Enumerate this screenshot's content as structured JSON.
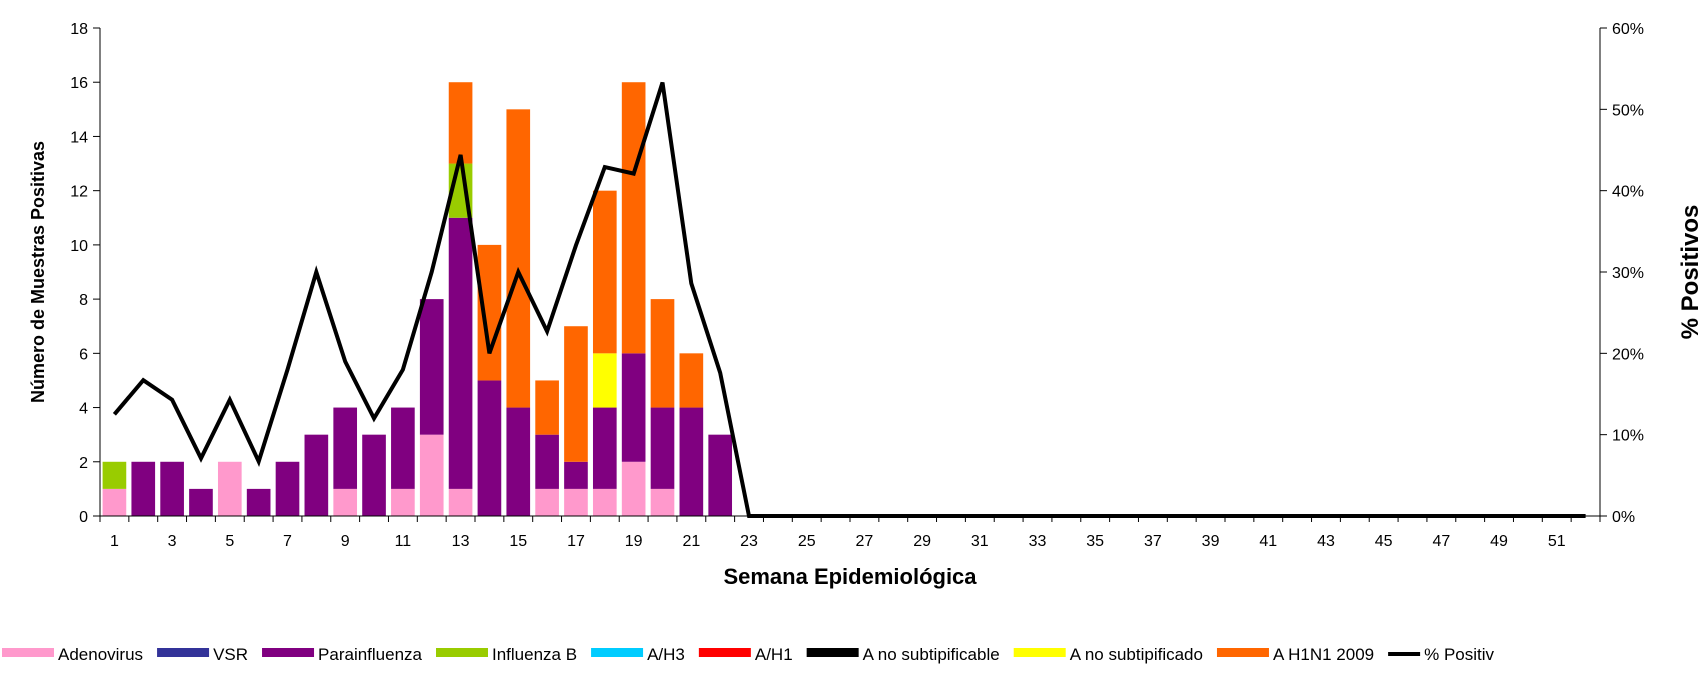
{
  "chart_data": {
    "type": "bar",
    "stacked": true,
    "xlabel": "Semana Epidemiológica",
    "ylabel": "Número de Muestras Positivas",
    "y2label": "% Positivos",
    "ylim": [
      0,
      18
    ],
    "yticks": [
      0,
      2,
      4,
      6,
      8,
      10,
      12,
      14,
      16,
      18
    ],
    "y2lim": [
      0,
      60
    ],
    "y2ticks": [
      "0%",
      "10%",
      "20%",
      "30%",
      "40%",
      "50%",
      "60%"
    ],
    "x": [
      1,
      2,
      3,
      4,
      5,
      6,
      7,
      8,
      9,
      10,
      11,
      12,
      13,
      14,
      15,
      16,
      17,
      18,
      19,
      20,
      21,
      22,
      23,
      24,
      25,
      26,
      27,
      28,
      29,
      30,
      31,
      32,
      33,
      34,
      35,
      36,
      37,
      38,
      39,
      40,
      41,
      42,
      43,
      44,
      45,
      46,
      47,
      48,
      49,
      50,
      51,
      52
    ],
    "xtick_labels": [
      "1",
      "3",
      "5",
      "7",
      "9",
      "11",
      "13",
      "15",
      "17",
      "19",
      "21",
      "23",
      "25",
      "27",
      "29",
      "31",
      "33",
      "35",
      "37",
      "39",
      "41",
      "43",
      "45",
      "47",
      "49",
      "51"
    ],
    "series": [
      {
        "name": "Adenovirus",
        "color": "#ff99cc",
        "kind": "bar",
        "values": [
          1,
          0,
          0,
          0,
          2,
          0,
          0,
          0,
          1,
          0,
          1,
          3,
          1,
          0,
          0,
          1,
          1,
          1,
          2,
          1,
          0,
          0,
          0,
          0,
          0,
          0,
          0,
          0,
          0,
          0,
          0,
          0,
          0,
          0,
          0,
          0,
          0,
          0,
          0,
          0,
          0,
          0,
          0,
          0,
          0,
          0,
          0,
          0,
          0,
          0,
          0,
          0
        ]
      },
      {
        "name": "VSR",
        "color": "#333399",
        "kind": "bar",
        "values": [
          0,
          0,
          0,
          0,
          0,
          0,
          0,
          0,
          0,
          0,
          0,
          0,
          0,
          0,
          0,
          0,
          0,
          0,
          0,
          0,
          0,
          0,
          0,
          0,
          0,
          0,
          0,
          0,
          0,
          0,
          0,
          0,
          0,
          0,
          0,
          0,
          0,
          0,
          0,
          0,
          0,
          0,
          0,
          0,
          0,
          0,
          0,
          0,
          0,
          0,
          0,
          0
        ]
      },
      {
        "name": "Parainfluenza",
        "color": "#800080",
        "kind": "bar",
        "values": [
          0,
          2,
          2,
          1,
          0,
          1,
          2,
          3,
          3,
          3,
          3,
          5,
          10,
          5,
          4,
          2,
          1,
          3,
          4,
          3,
          4,
          3,
          0,
          0,
          0,
          0,
          0,
          0,
          0,
          0,
          0,
          0,
          0,
          0,
          0,
          0,
          0,
          0,
          0,
          0,
          0,
          0,
          0,
          0,
          0,
          0,
          0,
          0,
          0,
          0,
          0,
          0
        ]
      },
      {
        "name": "Influenza  B",
        "color": "#99cc00",
        "kind": "bar",
        "values": [
          1,
          0,
          0,
          0,
          0,
          0,
          0,
          0,
          0,
          0,
          0,
          0,
          2,
          0,
          0,
          0,
          0,
          0,
          0,
          0,
          0,
          0,
          0,
          0,
          0,
          0,
          0,
          0,
          0,
          0,
          0,
          0,
          0,
          0,
          0,
          0,
          0,
          0,
          0,
          0,
          0,
          0,
          0,
          0,
          0,
          0,
          0,
          0,
          0,
          0,
          0,
          0
        ]
      },
      {
        "name": "A/H3",
        "color": "#00ccff",
        "kind": "bar",
        "values": [
          0,
          0,
          0,
          0,
          0,
          0,
          0,
          0,
          0,
          0,
          0,
          0,
          0,
          0,
          0,
          0,
          0,
          0,
          0,
          0,
          0,
          0,
          0,
          0,
          0,
          0,
          0,
          0,
          0,
          0,
          0,
          0,
          0,
          0,
          0,
          0,
          0,
          0,
          0,
          0,
          0,
          0,
          0,
          0,
          0,
          0,
          0,
          0,
          0,
          0,
          0,
          0
        ]
      },
      {
        "name": "A/H1",
        "color": "#ff0000",
        "kind": "bar",
        "values": [
          0,
          0,
          0,
          0,
          0,
          0,
          0,
          0,
          0,
          0,
          0,
          0,
          0,
          0,
          0,
          0,
          0,
          0,
          0,
          0,
          0,
          0,
          0,
          0,
          0,
          0,
          0,
          0,
          0,
          0,
          0,
          0,
          0,
          0,
          0,
          0,
          0,
          0,
          0,
          0,
          0,
          0,
          0,
          0,
          0,
          0,
          0,
          0,
          0,
          0,
          0,
          0
        ]
      },
      {
        "name": "A no subtipificable",
        "color": "#000000",
        "kind": "bar",
        "values": [
          0,
          0,
          0,
          0,
          0,
          0,
          0,
          0,
          0,
          0,
          0,
          0,
          0,
          0,
          0,
          0,
          0,
          0,
          0,
          0,
          0,
          0,
          0,
          0,
          0,
          0,
          0,
          0,
          0,
          0,
          0,
          0,
          0,
          0,
          0,
          0,
          0,
          0,
          0,
          0,
          0,
          0,
          0,
          0,
          0,
          0,
          0,
          0,
          0,
          0,
          0,
          0
        ]
      },
      {
        "name": "A no subtipificado",
        "color": "#ffff00",
        "kind": "bar",
        "values": [
          0,
          0,
          0,
          0,
          0,
          0,
          0,
          0,
          0,
          0,
          0,
          0,
          0,
          0,
          0,
          0,
          0,
          2,
          0,
          0,
          0,
          0,
          0,
          0,
          0,
          0,
          0,
          0,
          0,
          0,
          0,
          0,
          0,
          0,
          0,
          0,
          0,
          0,
          0,
          0,
          0,
          0,
          0,
          0,
          0,
          0,
          0,
          0,
          0,
          0,
          0,
          0
        ]
      },
      {
        "name": "A H1N1 2009",
        "color": "#ff6600",
        "kind": "bar",
        "values": [
          0,
          0,
          0,
          0,
          0,
          0,
          0,
          0,
          0,
          0,
          0,
          0,
          3,
          5,
          11,
          2,
          5,
          6,
          10,
          4,
          2,
          0,
          0,
          0,
          0,
          0,
          0,
          0,
          0,
          0,
          0,
          0,
          0,
          0,
          0,
          0,
          0,
          0,
          0,
          0,
          0,
          0,
          0,
          0,
          0,
          0,
          0,
          0,
          0,
          0,
          0,
          0
        ]
      },
      {
        "name": "% Positiv",
        "color": "#000000",
        "kind": "line",
        "axis": "right",
        "values": [
          12.5,
          16.7,
          14.3,
          7.1,
          14.3,
          6.7,
          18,
          30,
          19,
          12,
          18,
          30,
          44.4,
          20,
          30,
          22.7,
          33.3,
          42.9,
          42.1,
          53.3,
          28.6,
          17.6,
          0,
          0,
          0,
          0,
          0,
          0,
          0,
          0,
          0,
          0,
          0,
          0,
          0,
          0,
          0,
          0,
          0,
          0,
          0,
          0,
          0,
          0,
          0,
          0,
          0,
          0,
          0,
          0,
          0,
          0
        ]
      }
    ],
    "grid": false,
    "legend_position": "bottom"
  }
}
